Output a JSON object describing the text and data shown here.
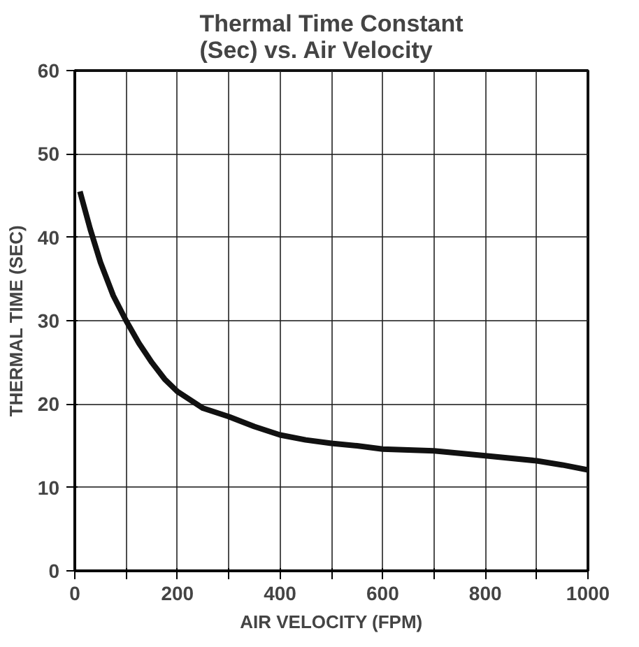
{
  "chart_data": {
    "type": "line",
    "title": "Thermal Time Constant\n(Sec) vs. Air Velocity",
    "xlabel": "AIR VELOCITY (FPM)",
    "ylabel": "THERMAL TIME (SEC)",
    "x": [
      10,
      30,
      50,
      75,
      100,
      125,
      150,
      175,
      200,
      250,
      300,
      350,
      400,
      450,
      500,
      550,
      600,
      700,
      800,
      900,
      950,
      1000
    ],
    "series": [
      {
        "color": "#111111",
        "values": [
          45.5,
          41,
          37,
          33,
          30,
          27.3,
          25,
          23,
          21.5,
          19.5,
          18.5,
          17.3,
          16.3,
          15.7,
          15.3,
          15,
          14.6,
          14.4,
          13.8,
          13.2,
          12.7,
          12.1
        ]
      }
    ],
    "xlim": [
      0,
      1000
    ],
    "ylim": [
      0,
      60
    ],
    "xticks": [
      0,
      {
        "value": 100,
        "label": null
      },
      200,
      {
        "value": 300,
        "label": null
      },
      400,
      {
        "value": 500,
        "label": null
      },
      600,
      {
        "value": 700,
        "label": null
      },
      800,
      {
        "value": 900,
        "label": null
      },
      1000
    ],
    "yticks": [
      0,
      10,
      20,
      30,
      40,
      50,
      60
    ],
    "grid": true,
    "line_style": "solid"
  }
}
